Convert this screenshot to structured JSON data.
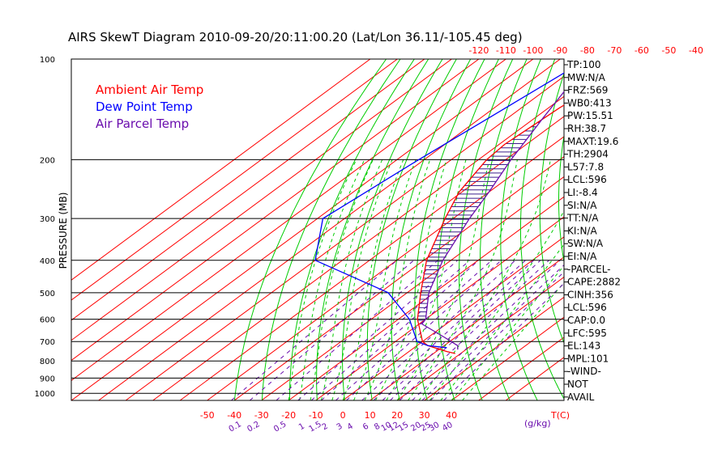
{
  "chart_data": {
    "type": "line",
    "title": "AIRS SkewT Diagram 2010-09-20/20:11:00.20 (Lat/Lon 36.11/-105.45 deg)",
    "ylabel": "PRESSURE (MB)",
    "y_scale": "log",
    "ylim": [
      1050,
      100
    ],
    "pressure_ticks": [
      "100",
      "200",
      "300",
      "400",
      "500",
      "600",
      "700",
      "800",
      "900",
      "1000"
    ],
    "top_temp_ticks": [
      "-120",
      "-110",
      "-100",
      "-90",
      "-80",
      "-70",
      "-60",
      "-50",
      "-40"
    ],
    "bottom_temp_ticks": [
      "-50",
      "-40",
      "-30",
      "-20",
      "-10",
      "0",
      "10",
      "20",
      "30",
      "40"
    ],
    "bottom_temp_unit": "T(C)",
    "mixing_ratio_ticks": [
      "0.1",
      "0.2",
      "0.5",
      "1",
      "1.5",
      "2",
      "3",
      "4",
      "6",
      "8",
      "10",
      "12",
      "15",
      "20",
      "25",
      "30",
      "40"
    ],
    "mixing_ratio_unit": "(g/kg)",
    "legend": [
      {
        "label": "Ambient Air Temp",
        "color": "#ff0000"
      },
      {
        "label": "Dew Point Temp",
        "color": "#0000ff"
      },
      {
        "label": "Air Parcel Temp",
        "color": "#6a0dad"
      }
    ],
    "series": [
      {
        "name": "Ambient Air Temp",
        "color": "#ff0000",
        "points": [
          [
            100,
            -60
          ],
          [
            140,
            -66
          ],
          [
            180,
            -68
          ],
          [
            200,
            -67
          ],
          [
            250,
            -61
          ],
          [
            300,
            -53
          ],
          [
            400,
            -39
          ],
          [
            500,
            -25
          ],
          [
            600,
            -13
          ],
          [
            700,
            0
          ],
          [
            720,
            4
          ],
          [
            750,
            14
          ],
          [
            760,
            18
          ]
        ]
      },
      {
        "name": "Dew Point Temp",
        "color": "#0000ff",
        "points": [
          [
            100,
            -80
          ],
          [
            150,
            -87
          ],
          [
            200,
            -92
          ],
          [
            300,
            -98
          ],
          [
            400,
            -80
          ],
          [
            500,
            -37
          ],
          [
            600,
            -16
          ],
          [
            700,
            -2
          ],
          [
            720,
            4
          ],
          [
            730,
            12
          ]
        ]
      },
      {
        "name": "Air Parcel Temp",
        "color": "#6a0dad",
        "points": [
          [
            100,
            -79
          ],
          [
            150,
            -67
          ],
          [
            200,
            -58
          ],
          [
            250,
            -50
          ],
          [
            300,
            -44
          ],
          [
            400,
            -33
          ],
          [
            500,
            -22
          ],
          [
            600,
            -10
          ],
          [
            620,
            -9
          ],
          [
            680,
            6
          ],
          [
            720,
            15
          ],
          [
            740,
            17
          ]
        ]
      }
    ],
    "stats": [
      "TP:100",
      "MW:N/A",
      "FRZ:569",
      "WB0:413",
      "PW:15.51",
      "RH:38.7",
      "MAXT:19.6",
      "TH:2904",
      "L57:7.8",
      "LCL:596",
      "LI:-8.4",
      "SI:N/A",
      "TT:N/A",
      "KI:N/A",
      "SW:N/A",
      "EI:N/A",
      "-PARCEL-",
      "CAPE:2882",
      "CINH:356",
      "LCL:596",
      "CAP:0.0",
      "LFC:595",
      "EL:143",
      "MPL:101",
      "-WIND-",
      "NOT",
      "AVAIL"
    ],
    "colors": {
      "isotherm": "#ff0000",
      "dry_adiabat": "#00cc00",
      "moist_adiabat": "#00cc00",
      "mixing_ratio": "#6a0dad",
      "isobar": "#000000",
      "cape_hatch": "#3b1f8c"
    }
  }
}
